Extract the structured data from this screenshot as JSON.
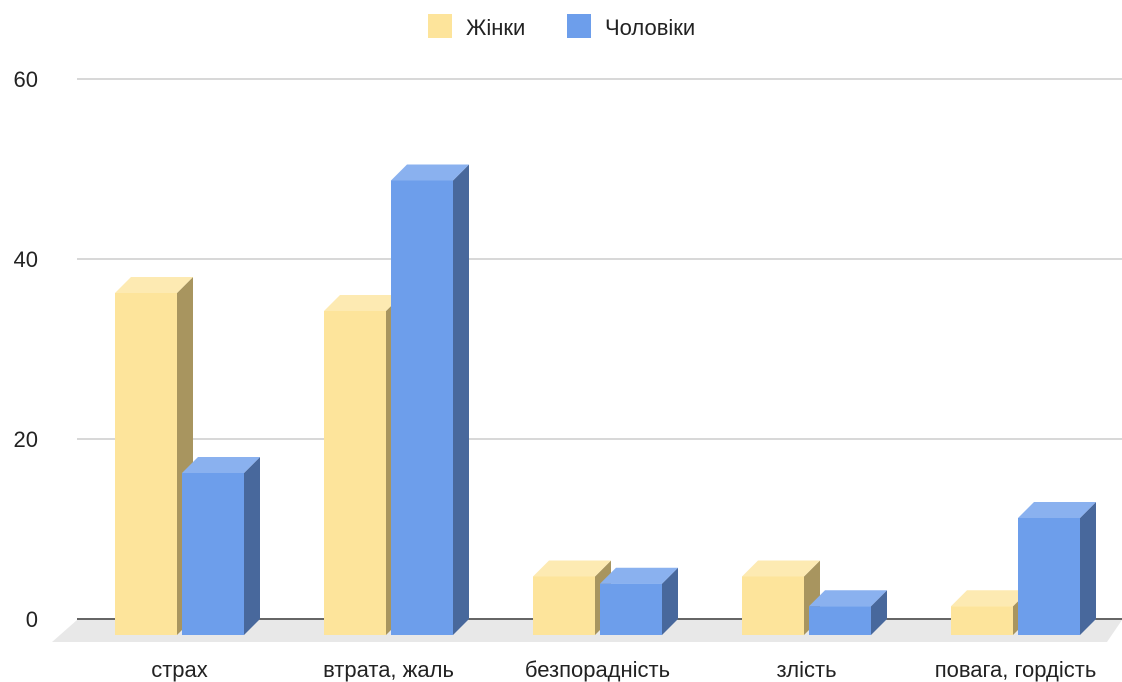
{
  "chart_data": {
    "type": "bar",
    "style": "3d-clustered-column",
    "categories": [
      "страх",
      "втрата, жаль",
      "безпорадність",
      "злість",
      "повага, гордість"
    ],
    "series": [
      {
        "name": "Жінки",
        "color": "#fde49b",
        "side_color": "#a8955f",
        "top_color": "#fdeab2",
        "values": [
          38,
          36,
          6.5,
          6.5,
          3.2
        ]
      },
      {
        "name": "Чоловіки",
        "color": "#6d9eeb",
        "side_color": "#48689c",
        "top_color": "#8ab1ef",
        "values": [
          18,
          50.5,
          5.7,
          3.2,
          13
        ]
      }
    ],
    "yticks": [
      0,
      20,
      40,
      60
    ],
    "ylim": [
      0,
      60
    ],
    "grid": true,
    "legend_position": "top-center",
    "title": "",
    "xlabel": "",
    "ylabel": ""
  }
}
